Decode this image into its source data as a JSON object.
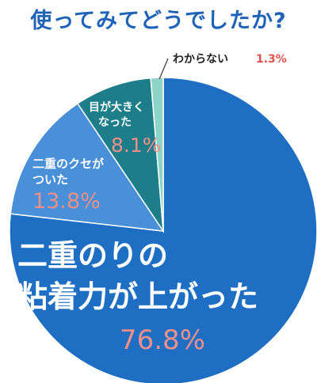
{
  "page_title": "使ってみてどうでしたか?",
  "colors": {
    "title": "#1E63B8",
    "percent_text": "#F0908A",
    "percent_small": "#E8504A",
    "callout_line": "#555555"
  },
  "chart_data": {
    "type": "pie",
    "title": "使ってみてどうでしたか?",
    "slices": [
      {
        "label_lines": [
          "二重のりの",
          "粘着力が上がった"
        ],
        "value": 76.8,
        "value_text": "76.8%",
        "color": "#1E6FC3"
      },
      {
        "label_lines": [
          "二重のクセが",
          "ついた"
        ],
        "value": 13.8,
        "value_text": "13.8%",
        "color": "#4A90D9"
      },
      {
        "label_lines": [
          "目が大きく",
          "なった"
        ],
        "value": 8.1,
        "value_text": "8.1%",
        "color": "#1D7E8A"
      },
      {
        "label_lines": [
          "わからない"
        ],
        "value": 1.3,
        "value_text": "1.3%",
        "color": "#8ED4C6"
      }
    ]
  }
}
